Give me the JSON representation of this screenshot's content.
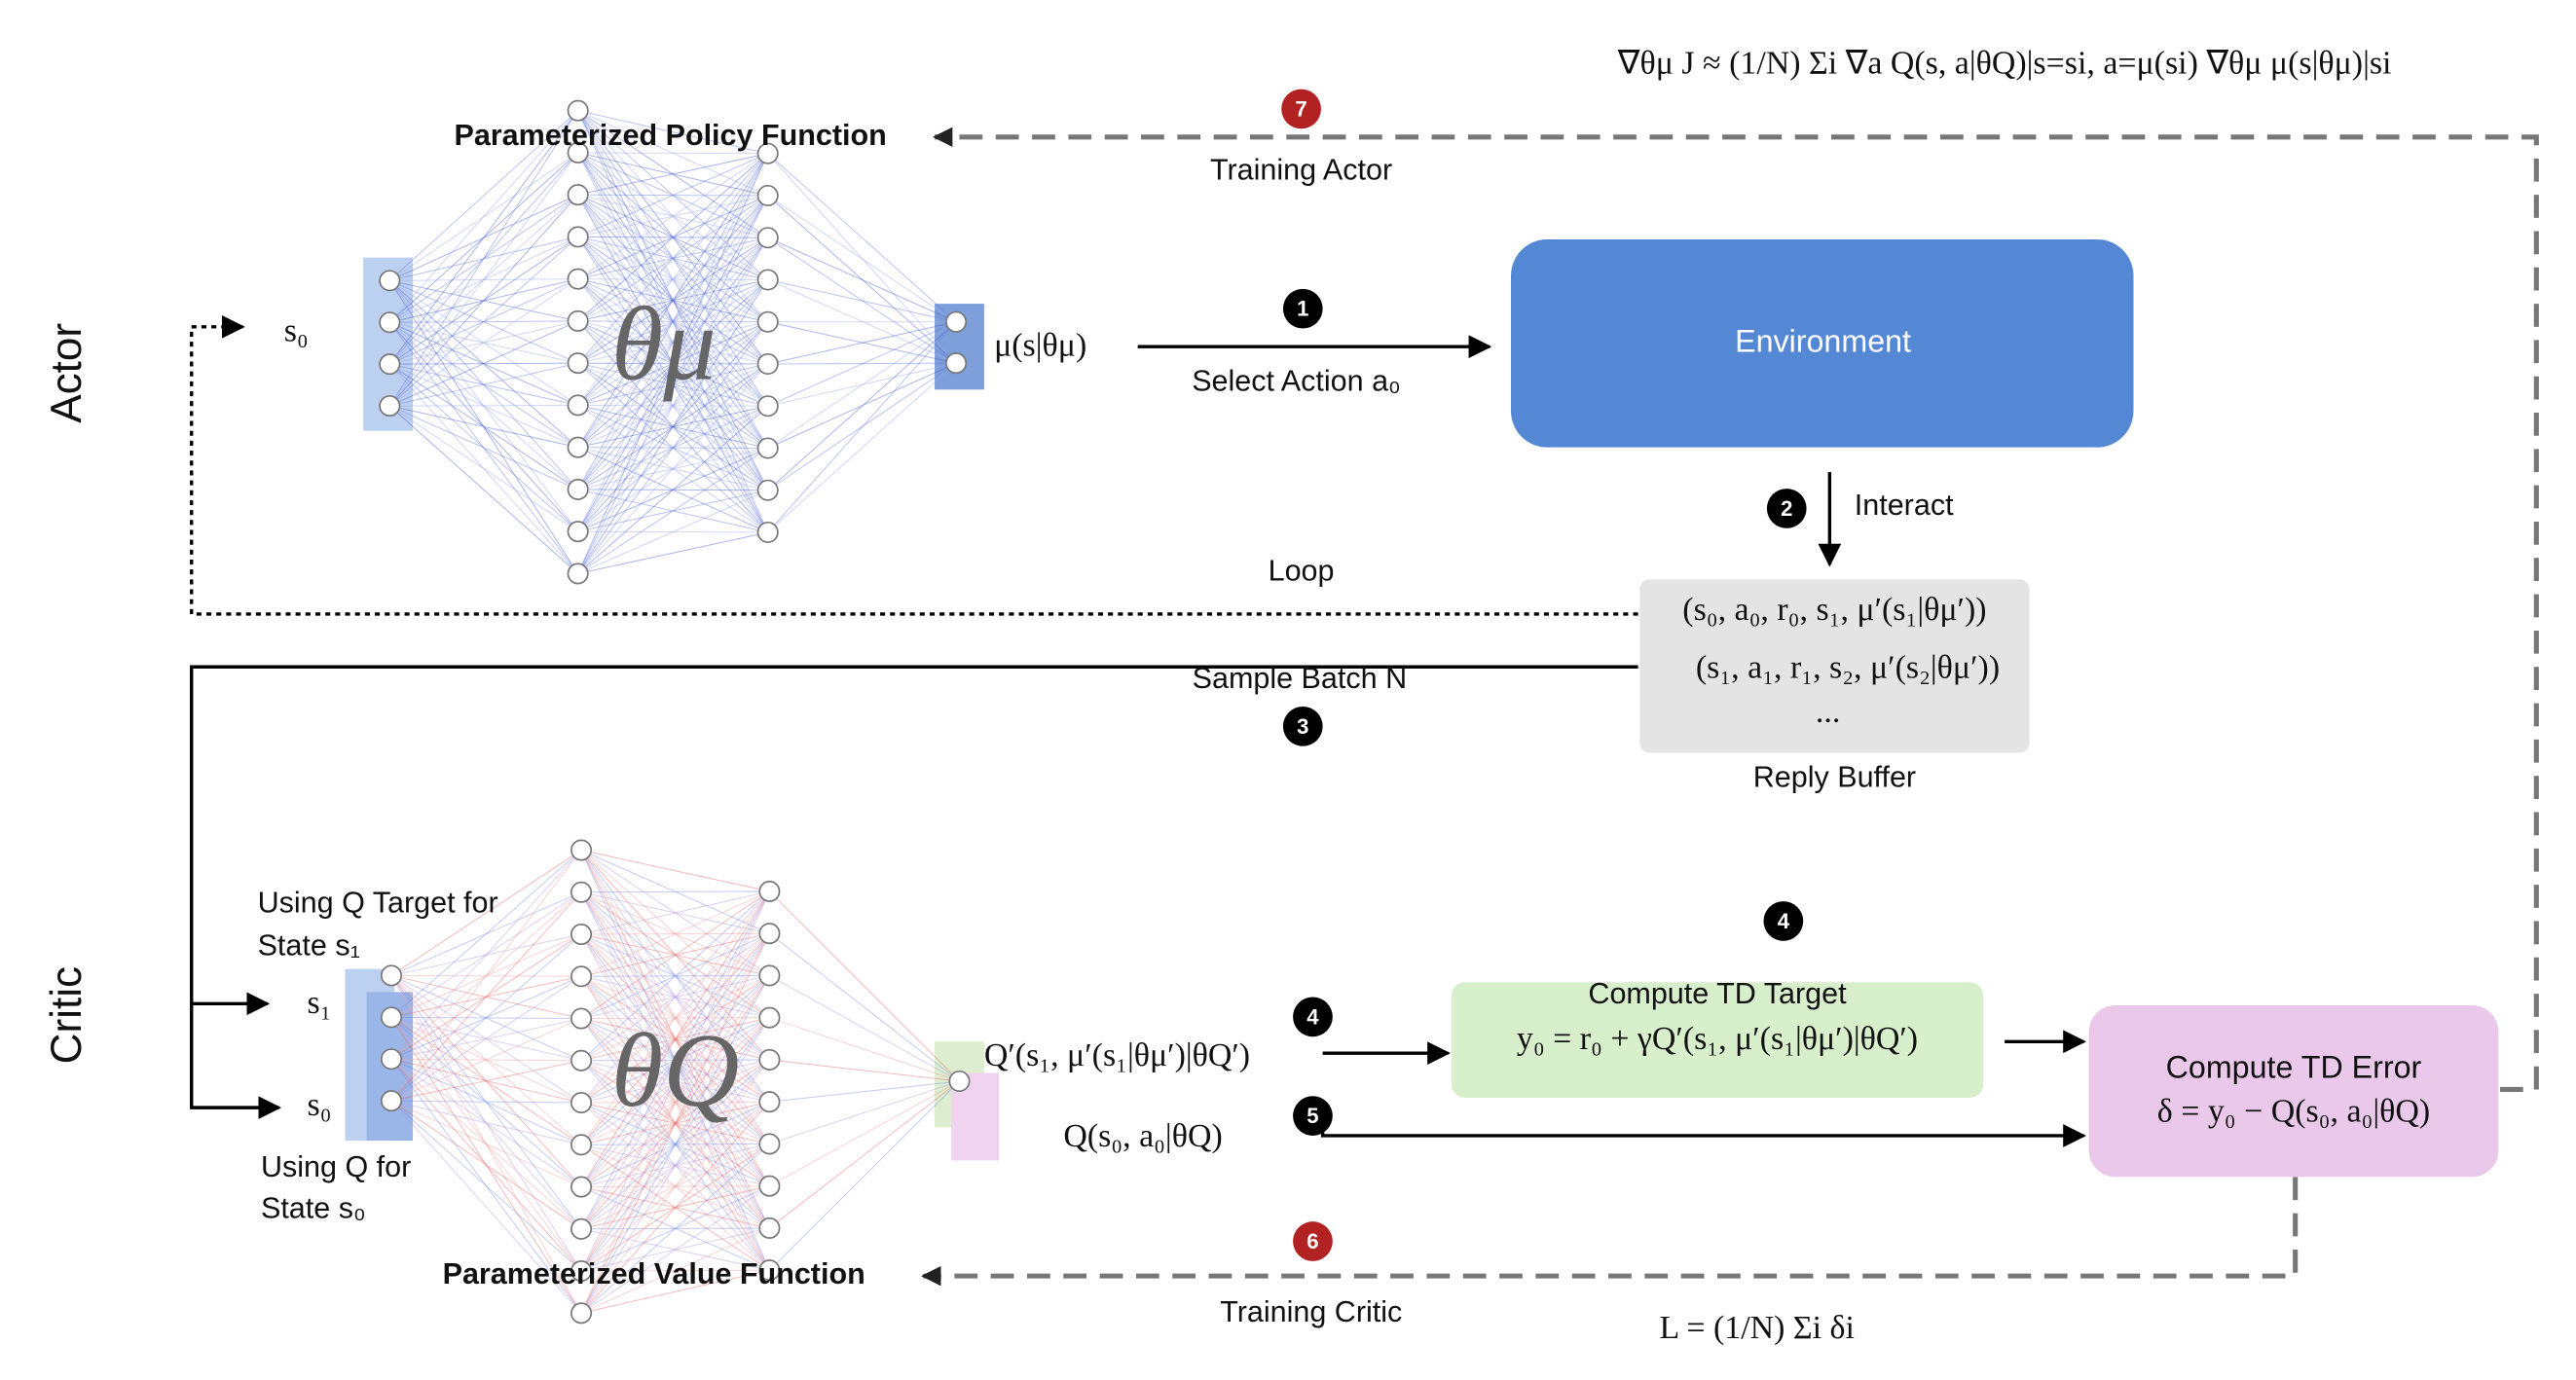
{
  "actor_gradient": "∇θμ J ≈ (1/N) Σi ∇a Q(s, a|θQ)|s=si, a=μ(si) ∇θμ μ(s|θμ)|si",
  "actor": {
    "label": "Actor",
    "title": "Parameterized Policy Function",
    "input": "s₀",
    "params": "θμ",
    "output": "μ(s|θμ)"
  },
  "critic": {
    "label": "Critic",
    "title": "Parameterized Value Function",
    "target_note": [
      "Using Q Target for",
      "State s₁"
    ],
    "q_note": [
      "Using Q for",
      "State s₀"
    ],
    "input_1": "s₁",
    "input_0": "s₀",
    "params": "θQ",
    "target_output": "Q′(s₁, μ′(s₁|θμ′)|θQ′)",
    "output": "Q(s₀, a₀|θQ)"
  },
  "environment": "Environment",
  "buffer": {
    "rows": [
      "(s₀, a₀, r₀, s₁, μ′(s₁|θμ′))",
      "(s₁, a₁, r₁, s₂, μ′(s₂|θμ′))",
      "..."
    ],
    "label": "Reply Buffer"
  },
  "td_target": {
    "title": "Compute TD Target",
    "formula": "y₀ = r₀ + γQ′(s₁, μ′(s₁|θμ′)|θQ′)"
  },
  "td_error": {
    "title": "Compute TD Error",
    "formula": "δ = y₀ − Q(s₀, a₀|θQ)"
  },
  "critic_loss": "L = (1/N) Σi δi",
  "steps": [
    {
      "number": "1",
      "label": "Select Action a₀"
    },
    {
      "number": "2",
      "label": "Interact"
    },
    {
      "number": "3",
      "label": "Sample Batch N"
    },
    {
      "number": "4"
    },
    {
      "number": "4"
    },
    {
      "number": "5"
    },
    {
      "number": "6",
      "label": "Training Critic"
    },
    {
      "number": "7",
      "label": "Training Actor"
    }
  ],
  "loop": "Loop"
}
